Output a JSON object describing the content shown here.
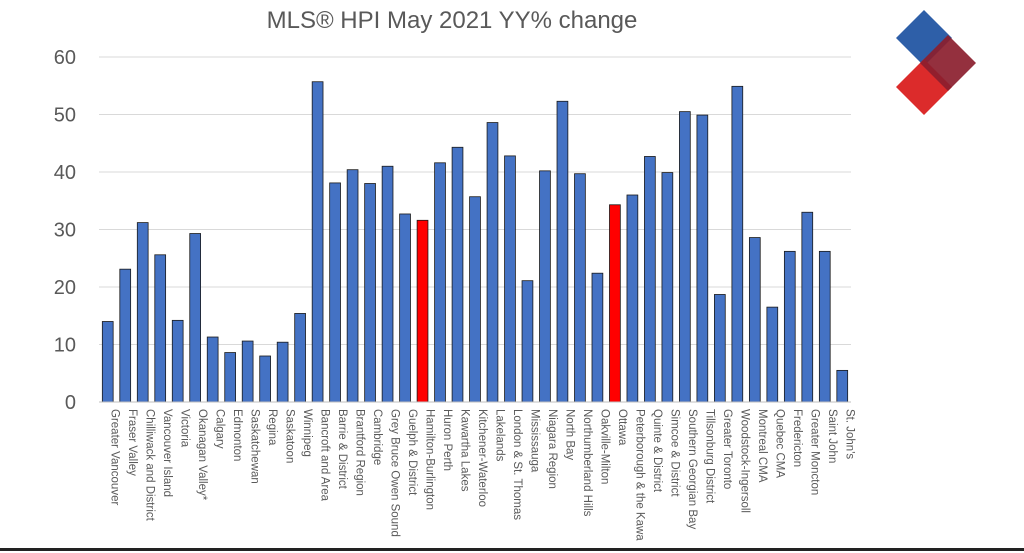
{
  "chart_data": {
    "type": "bar",
    "title": "MLS® HPI  May 2021 YY% change",
    "xlabel": "",
    "ylabel": "",
    "ylim": [
      0,
      60
    ],
    "yticks": [
      0,
      10,
      20,
      30,
      40,
      50,
      60
    ],
    "grid": true,
    "categories": [
      "Greater Vancouver",
      "Fraser Valley",
      "Chilliwack and District",
      "Vancouver Island",
      "Victoria",
      "Okanagan Valley*",
      "Calgary",
      "Edmonton",
      "Saskatchewan",
      "Regina",
      "Saskatoon",
      "Winnipeg",
      "Bancroft and Area",
      "Barrie & District",
      "Brantford Region",
      "Cambridge",
      "Grey Bruce Owen Sound",
      "Guelph & District",
      "Hamilton-Burlington",
      "Huron Perth",
      "Kawartha Lakes",
      "Kitchener-Waterloo",
      "Lakelands",
      "London & St. Thomas",
      "Mississauga",
      "Niagara Region",
      "North Bay",
      "Northumberland Hills",
      "Oakville-Milton",
      "Ottawa",
      "Peterborough & the Kawarthas",
      "Quinte & District",
      "Simcoe & District",
      "Southern Georgian Bay",
      "Tillsonburg District",
      "Greater Toronto",
      "Woodstock-Ingersoll",
      "Montreal CMA",
      "Quebec CMA",
      "Fredericton",
      "Greater Moncton",
      "Saint John",
      "St. John's"
    ],
    "tick_labels": [
      "Greater Vancouver",
      "Fraser Valley",
      "Chilliwack and District",
      "Vancouver Island",
      "Victoria",
      "Okanagan Valley*",
      "Calgary",
      "Edmonton",
      "Saskatchewan",
      "Regina",
      "Saskatoon",
      "Winnipeg",
      "Bancroft and Area",
      "Barrie & District",
      "Brantford Region",
      "Cambridge",
      "Grey Bruce Owen Sound",
      "Guelph & District",
      "Hamilton-Burlington",
      "Huron Perth",
      "Kawartha Lakes",
      "Kitchener-Waterloo",
      "Lakelands",
      "London & St. Thomas",
      "Mississauga",
      "Niagara Region",
      "North Bay",
      "Northumberland Hills",
      "Oakville-Milton",
      "Ottawa",
      "Peterborough & the Kawa",
      "Quinte & District",
      "Simcoe & District",
      "Southern Georgian Bay",
      "Tillsonburg District",
      "Greater Toronto",
      "Woodstock-Ingersoll",
      "Montreal CMA",
      "Quebec CMA",
      "Fredericton",
      "Greater Moncton",
      "Saint John",
      "St. John's"
    ],
    "values": [
      14.0,
      23.1,
      31.2,
      25.6,
      14.2,
      29.3,
      11.3,
      8.6,
      10.6,
      8.0,
      10.4,
      15.4,
      55.7,
      38.1,
      40.4,
      38.0,
      41.0,
      32.7,
      31.6,
      41.6,
      44.3,
      35.7,
      48.6,
      42.8,
      21.1,
      40.2,
      52.3,
      39.7,
      22.4,
      34.3,
      36.0,
      42.7,
      39.9,
      50.5,
      49.9,
      18.7,
      54.9,
      28.6,
      16.5,
      26.2,
      33.0,
      26.2,
      5.5
    ],
    "highlight_indices": [
      18,
      29
    ],
    "colors": {
      "bar": "#4472c4",
      "highlight": "#ff0000",
      "bar_stroke": "#1a1a1a",
      "grid": "#d9d9d9",
      "text": "#595959"
    }
  },
  "logo": {
    "name": "logo-icon",
    "colors": {
      "top": "#2e5fa8",
      "right": "#8b1e2e",
      "bottom": "#dc2b2b"
    }
  }
}
